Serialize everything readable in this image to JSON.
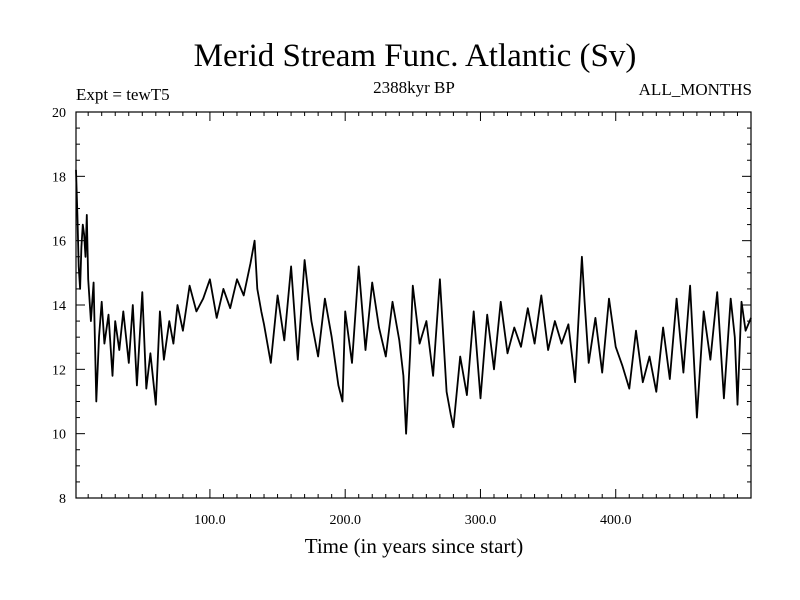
{
  "chart_data": {
    "type": "line",
    "title": "Merid Stream Func. Atlantic (Sv)",
    "subtitle_left": "Expt = tewT5",
    "subtitle_center": "2388kyr BP",
    "subtitle_right": "ALL_MONTHS",
    "xlabel": "Time (in years since start)",
    "ylabel": "",
    "xlim": [
      1,
      500
    ],
    "ylim": [
      8,
      20
    ],
    "xticks": [
      100,
      200,
      300,
      400
    ],
    "xtick_labels": [
      "100.0",
      "200.0",
      "300.0",
      "400.0"
    ],
    "yticks": [
      8,
      10,
      12,
      14,
      16,
      18,
      20
    ],
    "ytick_labels": [
      "8",
      "10",
      "12",
      "14",
      "16",
      "18",
      "20"
    ],
    "grid": false,
    "series": [
      {
        "name": "Merid Stream Func. Atlantic",
        "color": "#000000",
        "x": [
          1,
          2,
          3,
          4,
          5,
          6,
          7,
          8,
          9,
          10,
          12,
          14,
          16,
          18,
          20,
          22,
          25,
          28,
          30,
          33,
          36,
          40,
          43,
          46,
          50,
          53,
          56,
          60,
          63,
          66,
          70,
          73,
          76,
          80,
          85,
          90,
          95,
          100,
          105,
          110,
          115,
          120,
          125,
          130,
          133,
          135,
          138,
          140,
          145,
          150,
          155,
          160,
          165,
          170,
          175,
          180,
          185,
          190,
          195,
          198,
          200,
          205,
          210,
          215,
          220,
          225,
          230,
          235,
          240,
          243,
          245,
          248,
          250,
          255,
          260,
          265,
          270,
          275,
          278,
          280,
          285,
          290,
          295,
          300,
          305,
          310,
          315,
          320,
          325,
          330,
          335,
          340,
          345,
          350,
          355,
          360,
          365,
          370,
          375,
          377,
          380,
          385,
          390,
          395,
          400,
          405,
          410,
          415,
          420,
          425,
          430,
          435,
          440,
          445,
          450,
          455,
          460,
          465,
          470,
          475,
          480,
          485,
          488,
          490,
          493,
          496,
          500
        ],
        "y": [
          18.2,
          16.8,
          15.2,
          14.5,
          15.8,
          16.5,
          16.2,
          15.5,
          16.8,
          14.8,
          13.5,
          14.7,
          11.0,
          13.0,
          14.1,
          12.8,
          13.7,
          11.8,
          13.5,
          12.6,
          13.8,
          12.2,
          14.0,
          11.5,
          14.4,
          11.4,
          12.5,
          10.9,
          13.8,
          12.3,
          13.5,
          12.8,
          14.0,
          13.2,
          14.6,
          13.8,
          14.2,
          14.8,
          13.6,
          14.5,
          13.9,
          14.8,
          14.3,
          15.3,
          16.0,
          14.5,
          13.8,
          13.4,
          12.2,
          14.3,
          12.9,
          15.2,
          12.3,
          15.4,
          13.5,
          12.4,
          14.2,
          13.0,
          11.5,
          11.0,
          13.8,
          12.2,
          15.2,
          12.6,
          14.7,
          13.3,
          12.4,
          14.1,
          12.9,
          11.8,
          10.0,
          12.5,
          14.6,
          12.8,
          13.5,
          11.8,
          14.8,
          11.3,
          10.6,
          10.2,
          12.4,
          11.2,
          13.8,
          11.1,
          13.7,
          12.0,
          14.1,
          12.5,
          13.3,
          12.7,
          13.9,
          12.8,
          14.3,
          12.6,
          13.5,
          12.8,
          13.4,
          11.6,
          15.5,
          14.1,
          12.2,
          13.6,
          11.9,
          14.2,
          12.7,
          12.1,
          11.4,
          13.2,
          11.6,
          12.4,
          11.3,
          13.3,
          11.7,
          14.2,
          11.9,
          14.6,
          10.5,
          13.8,
          12.3,
          14.4,
          11.1,
          14.2,
          13.0,
          10.9,
          14.1,
          13.2,
          13.6
        ]
      }
    ]
  }
}
